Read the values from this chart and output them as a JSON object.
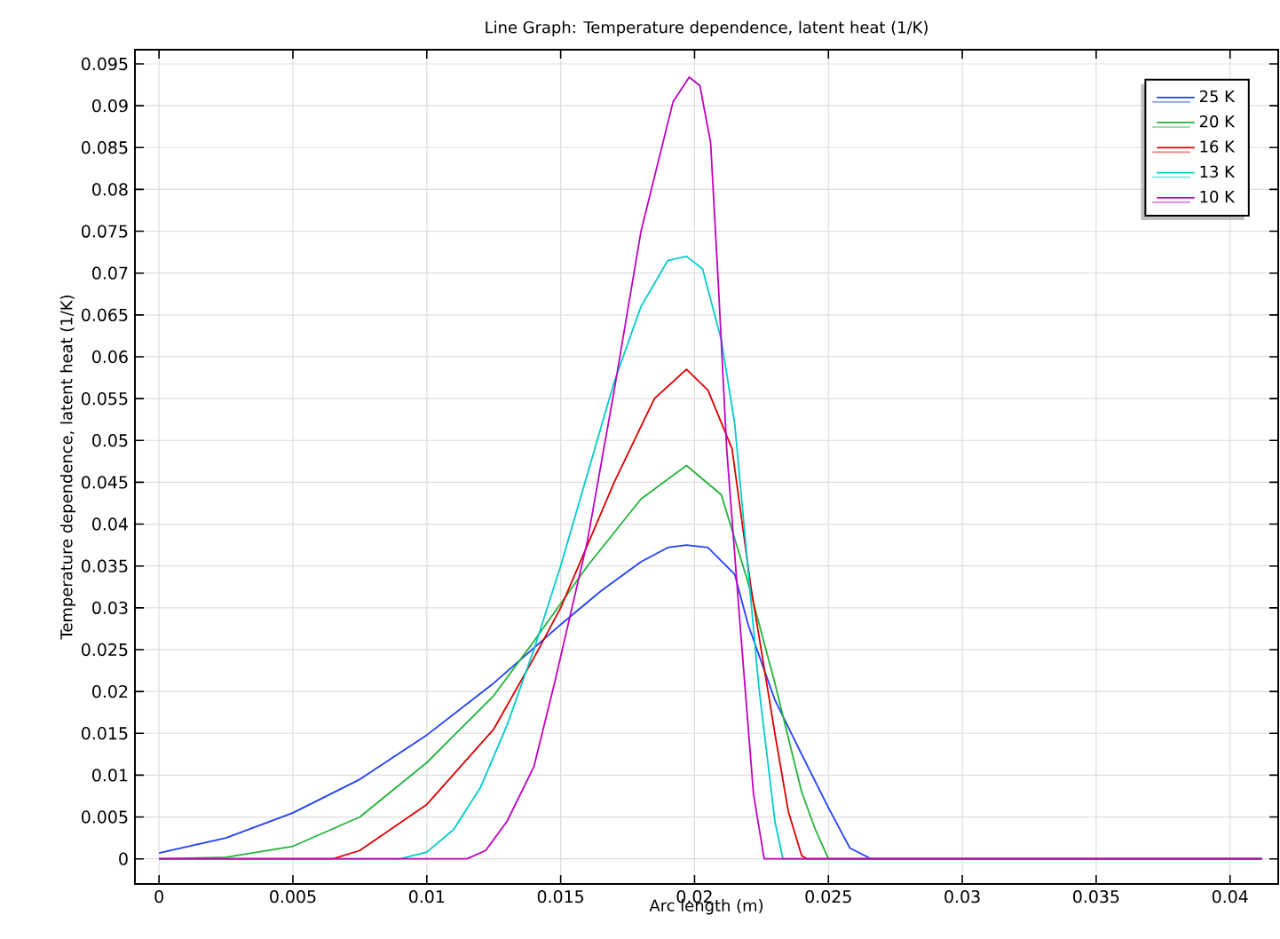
{
  "chart_data": {
    "type": "line",
    "title": "Line Graph: Temperature dependence, latent heat (1/K)",
    "xlabel": "Arc length (m)",
    "ylabel": "Temperature dependence, latent heat (1/K)",
    "xlim": [
      -0.0009,
      0.0418
    ],
    "ylim": [
      -0.003,
      0.0967
    ],
    "xticks": [
      0,
      0.005,
      0.01,
      0.015,
      0.02,
      0.025,
      0.03,
      0.035,
      0.04
    ],
    "yticks": [
      0,
      0.005,
      0.01,
      0.015,
      0.02,
      0.025,
      0.03,
      0.035,
      0.04,
      0.045,
      0.05,
      0.055,
      0.06,
      0.065,
      0.07,
      0.075,
      0.08,
      0.085,
      0.09,
      0.095
    ],
    "grid": true,
    "legend": "top right",
    "marker": "none",
    "line_style": "solid",
    "series": [
      {
        "name": "25 K",
        "color": "#1f3fff",
        "x": [
          0,
          0.0025,
          0.005,
          0.0075,
          0.01,
          0.0125,
          0.015,
          0.0165,
          0.018,
          0.019,
          0.0197,
          0.0205,
          0.0215,
          0.022,
          0.023,
          0.024,
          0.025,
          0.0258,
          0.0266,
          0.0412
        ],
        "values": [
          0.0007,
          0.0025,
          0.0055,
          0.0095,
          0.0148,
          0.021,
          0.028,
          0.032,
          0.0355,
          0.0372,
          0.0375,
          0.0372,
          0.034,
          0.028,
          0.019,
          0.0125,
          0.0061,
          0.0013,
          0,
          0
        ]
      },
      {
        "name": "20 K",
        "color": "#22b33a",
        "x": [
          0,
          0.0025,
          0.005,
          0.0075,
          0.01,
          0.0125,
          0.014,
          0.016,
          0.018,
          0.0197,
          0.021,
          0.022,
          0.023,
          0.024,
          0.0245,
          0.025,
          0.0412
        ],
        "values": [
          0,
          0.0002,
          0.0015,
          0.005,
          0.0115,
          0.0195,
          0.026,
          0.035,
          0.043,
          0.047,
          0.0435,
          0.033,
          0.021,
          0.008,
          0.0036,
          0,
          0
        ]
      },
      {
        "name": "16 K",
        "color": "#dd0000",
        "x": [
          0,
          0.0065,
          0.0075,
          0.01,
          0.0125,
          0.014,
          0.015,
          0.017,
          0.0185,
          0.0197,
          0.0205,
          0.0214,
          0.0221,
          0.023,
          0.0235,
          0.024,
          0.0242,
          0.0412
        ],
        "values": [
          0,
          0,
          0.001,
          0.0065,
          0.0155,
          0.024,
          0.03,
          0.045,
          0.055,
          0.0585,
          0.056,
          0.049,
          0.0326,
          0.015,
          0.0057,
          0.0004,
          0,
          0
        ]
      },
      {
        "name": "13 K",
        "color": "#00cccc",
        "x": [
          0,
          0.009,
          0.01,
          0.011,
          0.012,
          0.013,
          0.014,
          0.015,
          0.016,
          0.017,
          0.018,
          0.019,
          0.0197,
          0.0203,
          0.021,
          0.0215,
          0.0224,
          0.023,
          0.0233,
          0.0412
        ],
        "values": [
          0,
          0,
          0.0008,
          0.0035,
          0.0085,
          0.016,
          0.025,
          0.035,
          0.046,
          0.057,
          0.066,
          0.0715,
          0.072,
          0.0705,
          0.062,
          0.052,
          0.0206,
          0.0045,
          0,
          0
        ]
      },
      {
        "name": "10 K",
        "color": "#c000c0",
        "x": [
          0,
          0.0115,
          0.0122,
          0.013,
          0.014,
          0.0148,
          0.016,
          0.017,
          0.018,
          0.0192,
          0.0198,
          0.0202,
          0.0206,
          0.0209,
          0.0212,
          0.0217,
          0.0222,
          0.0226,
          0.0412
        ],
        "values": [
          0,
          0,
          0.001,
          0.0045,
          0.011,
          0.0214,
          0.038,
          0.056,
          0.075,
          0.0905,
          0.0934,
          0.0924,
          0.0856,
          0.068,
          0.049,
          0.028,
          0.0078,
          0,
          0
        ]
      }
    ]
  }
}
